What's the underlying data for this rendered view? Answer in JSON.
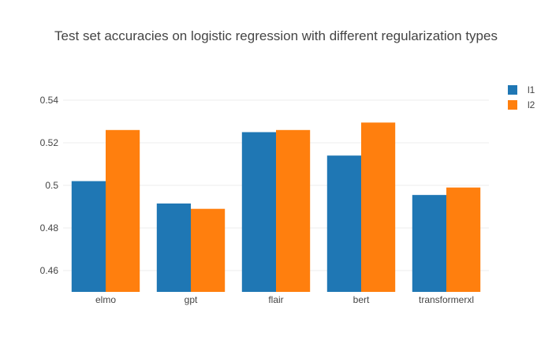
{
  "chart_data": {
    "type": "bar",
    "title": "Test set accuracies on logistic regression with different regularization types",
    "xlabel": "",
    "ylabel": "",
    "categories": [
      "elmo",
      "gpt",
      "flair",
      "bert",
      "transformerxl"
    ],
    "series": [
      {
        "name": "l1",
        "color": "#1f77b4",
        "values": [
          0.502,
          0.4915,
          0.525,
          0.514,
          0.4955
        ]
      },
      {
        "name": "l2",
        "color": "#ff7f0e",
        "values": [
          0.526,
          0.489,
          0.526,
          0.5295,
          0.499
        ]
      }
    ],
    "ylim": [
      0.45,
      0.55
    ],
    "yticks": [
      0.46,
      0.48,
      0.5,
      0.52,
      0.54
    ],
    "ytick_labels": [
      "0.46",
      "0.48",
      "0.5",
      "0.52",
      "0.54"
    ],
    "grid": true,
    "legend_position": "top-right"
  }
}
